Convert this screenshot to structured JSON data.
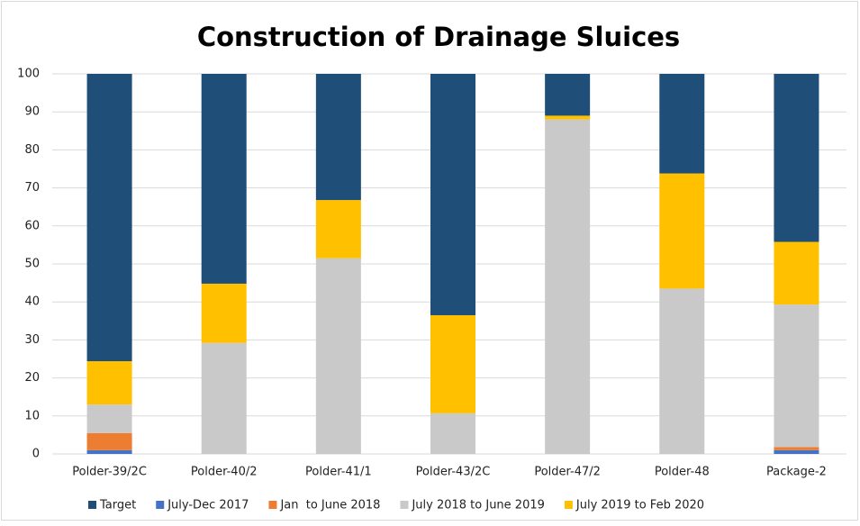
{
  "chart_data": {
    "type": "stacked_bar",
    "title": "Construction of Drainage Sluices",
    "categories": [
      "Polder-39/2C",
      "Polder-40/2",
      "Polder-41/1",
      "Polder-43/2C",
      "Polder-47/2",
      "Polder-48",
      "Package-2"
    ],
    "series": [
      {
        "name": "Target",
        "color": "#1f4e79",
        "values": [
          75.6,
          55.2,
          33.2,
          63.5,
          11,
          26.2,
          44.2
        ]
      },
      {
        "name": "July-Dec 2017",
        "color": "#4472c4",
        "values": [
          1,
          0,
          0,
          0,
          0,
          0,
          1
        ]
      },
      {
        "name": "Jan  to June 2018",
        "color": "#ed7d31",
        "values": [
          4.5,
          0,
          0,
          0,
          0,
          0,
          0.8
        ]
      },
      {
        "name": "July 2018 to June 2019",
        "color": "#c9c9c9",
        "values": [
          7.5,
          29.2,
          51.5,
          10.7,
          88,
          43.5,
          37.5
        ]
      },
      {
        "name": "July 2019 to Feb 2020",
        "color": "#ffc000",
        "values": [
          11.4,
          15.6,
          15.3,
          25.8,
          1,
          30.3,
          16.5
        ]
      }
    ],
    "ylim": [
      0,
      100
    ],
    "yticks": [
      0,
      10,
      20,
      30,
      40,
      50,
      60,
      70,
      80,
      90,
      100
    ],
    "grid": true,
    "legend": "bottom"
  }
}
